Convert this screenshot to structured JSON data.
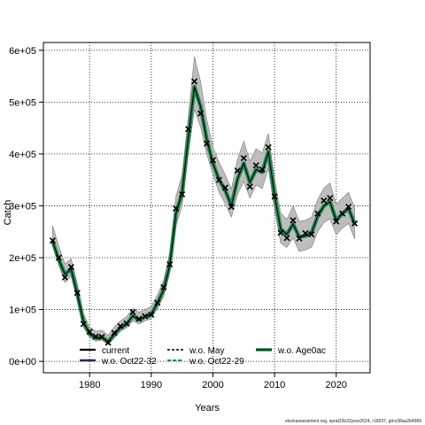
{
  "chart_data": {
    "type": "line",
    "title": "",
    "xlabel": "Years",
    "ylabel": "Catch",
    "xlim": [
      1972.5,
      2025.5
    ],
    "ylim": [
      -22000,
      615000
    ],
    "x_ticks": [
      1980,
      1990,
      2000,
      2010,
      2020
    ],
    "x_tick_labels": [
      "1980",
      "1990",
      "2000",
      "2010",
      "2020"
    ],
    "y_ticks": [
      0,
      100000,
      200000,
      300000,
      400000,
      500000,
      600000
    ],
    "y_tick_labels": [
      "0e+00",
      "1e+05",
      "2e+05",
      "3e+05",
      "4e+05",
      "5e+05",
      "6e+05"
    ],
    "grid": true,
    "legend_position": "bottom",
    "legend": [
      "current",
      "w.o. Oct22-32",
      "w.o. May",
      "w.o. Oct22-29",
      "w.o. Age0ac"
    ],
    "colors": {
      "band": "#bdbdbd",
      "current": "#000000",
      "wo_oct22_32": "#27285e",
      "wo_may": "#1f3f74",
      "wo_oct22_29": "#2c7d6e",
      "wo_age0ac": "#2a8a48",
      "observed": "#000000"
    },
    "x": [
      1974,
      1975,
      1976,
      1977,
      1978,
      1979,
      1980,
      1981,
      1982,
      1983,
      1984,
      1985,
      1986,
      1987,
      1988,
      1989,
      1990,
      1991,
      1992,
      1993,
      1994,
      1995,
      1996,
      1997,
      1998,
      1999,
      2000,
      2001,
      2002,
      2003,
      2004,
      2005,
      2006,
      2007,
      2008,
      2009,
      2010,
      2011,
      2012,
      2013,
      2014,
      2015,
      2016,
      2017,
      2018,
      2019,
      2020,
      2021,
      2022,
      2023
    ],
    "series": [
      {
        "name": "current",
        "values": [
          232000,
          196000,
          168000,
          178000,
          130000,
          76000,
          53000,
          45000,
          47000,
          38000,
          52000,
          65000,
          72000,
          88000,
          80000,
          86000,
          91000,
          112000,
          138000,
          185000,
          285000,
          325000,
          430000,
          530000,
          492000,
          428000,
          382000,
          350000,
          330000,
          300000,
          352000,
          382000,
          345000,
          370000,
          365000,
          405000,
          320000,
          255000,
          245000,
          265000,
          240000,
          242000,
          248000,
          280000,
          300000,
          308000,
          272000,
          285000,
          295000,
          265000
        ]
      },
      {
        "name": "observed",
        "values": [
          233000,
          200000,
          162000,
          182000,
          132000,
          72000,
          57000,
          48000,
          47000,
          36000,
          55000,
          68000,
          73000,
          95000,
          82000,
          87000,
          90000,
          113000,
          143000,
          187000,
          295000,
          322000,
          448000,
          540000,
          478000,
          420000,
          388000,
          350000,
          335000,
          298000,
          368000,
          392000,
          337000,
          378000,
          370000,
          413000,
          318000,
          248000,
          238000,
          272000,
          237000,
          247000,
          245000,
          285000,
          310000,
          315000,
          270000,
          285000,
          298000,
          266000
        ]
      }
    ],
    "band": {
      "lower": [
        222000,
        185000,
        152000,
        165000,
        118000,
        66000,
        46000,
        39000,
        41000,
        32000,
        45000,
        58000,
        65000,
        78000,
        72000,
        78000,
        82000,
        102000,
        125000,
        170000,
        262000,
        300000,
        398000,
        486000,
        452000,
        400000,
        360000,
        326000,
        304000,
        278000,
        322000,
        347000,
        315000,
        340000,
        333000,
        372000,
        292000,
        228000,
        220000,
        238000,
        212000,
        215000,
        220000,
        250000,
        268000,
        275000,
        244000,
        257000,
        266000,
        236000
      ],
      "upper": [
        262000,
        222000,
        188000,
        198000,
        150000,
        92000,
        66000,
        58000,
        60000,
        50000,
        66000,
        78000,
        86000,
        102000,
        95000,
        100000,
        106000,
        128000,
        156000,
        210000,
        318000,
        360000,
        470000,
        588000,
        540000,
        466000,
        414000,
        384000,
        360000,
        332000,
        390000,
        425000,
        386000,
        410000,
        402000,
        440000,
        352000,
        286000,
        274000,
        300000,
        270000,
        272000,
        278000,
        312000,
        334000,
        344000,
        303000,
        315000,
        326000,
        296000
      ]
    }
  },
  "footnote": "stockassessment.org, sprat22b32year2024, r18037, git:e38aa2b4989"
}
